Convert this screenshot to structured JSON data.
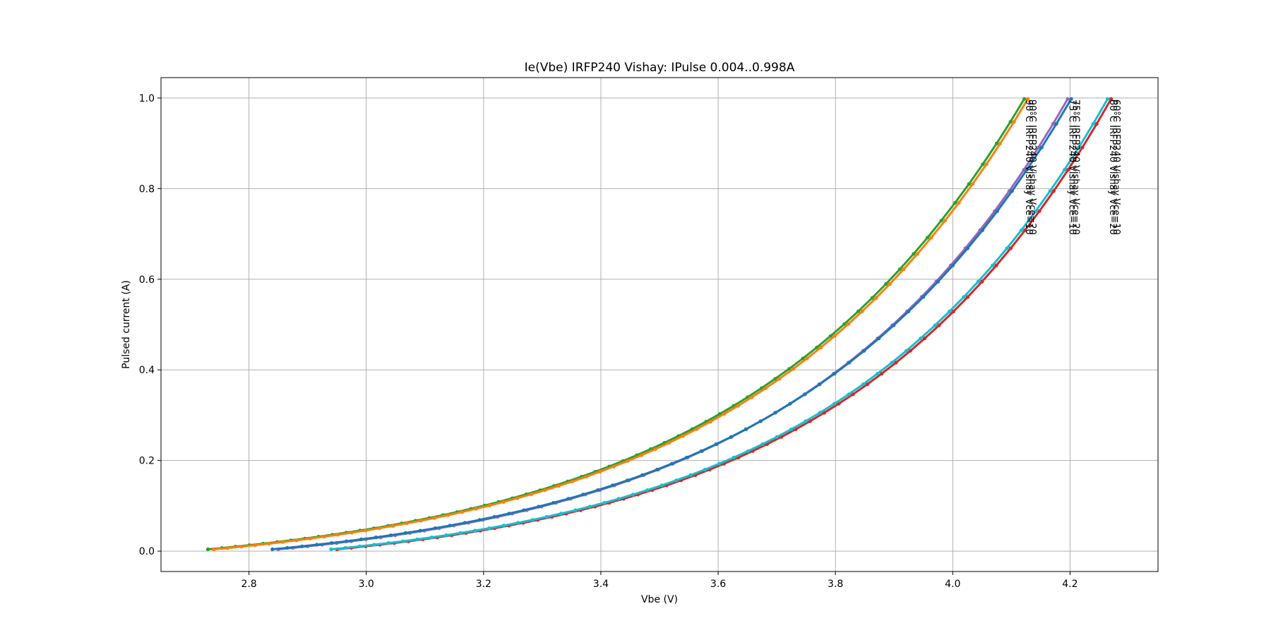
{
  "chart_data": {
    "type": "line",
    "title": "Ie(Vbe) IRFP240 Vishay: IPulse 0.004..0.998A",
    "xlabel": "Vbe (V)",
    "ylabel": "Pulsed current (A)",
    "xlim": [
      2.65,
      4.35
    ],
    "ylim": [
      -0.045,
      1.045
    ],
    "xticks": [
      2.8,
      3.0,
      3.2,
      3.4,
      3.6,
      3.8,
      4.0,
      4.2
    ],
    "xtick_labels": [
      "2.8",
      "3.0",
      "3.2",
      "3.4",
      "3.6",
      "3.8",
      "4.0",
      "4.2"
    ],
    "yticks": [
      0.0,
      0.2,
      0.4,
      0.6,
      0.8,
      1.0
    ],
    "ytick_labels": [
      "0.0",
      "0.2",
      "0.4",
      "0.6",
      "0.8",
      "1.0"
    ],
    "grid": true,
    "legend": "none",
    "i_range": [
      0.004,
      0.998
    ],
    "series": [
      {
        "label": "90°C IRFP240 Vishay Vce=10",
        "color": "#2ca02c",
        "vbe_start": 2.73,
        "vbe_end": 4.122,
        "markers": 60
      },
      {
        "label": "90°C IRFP240 Vishay Vce=20",
        "color": "#ff7f0e",
        "vbe_start": 2.74,
        "vbe_end": 4.128,
        "markers": 60
      },
      {
        "label": "75°C IRFP240 Vishay Vce=10",
        "color": "#9467bd",
        "vbe_start": 2.85,
        "vbe_end": 4.196,
        "markers": 55
      },
      {
        "label": "75°C IRFP240 Vishay Vce=20",
        "color": "#1f77b4",
        "vbe_start": 2.84,
        "vbe_end": 4.202,
        "markers": 55
      },
      {
        "label": "60°C IRFP240 Vishay Vce=10",
        "color": "#d62728",
        "vbe_start": 2.95,
        "vbe_end": 4.27,
        "markers": 55
      },
      {
        "label": "60°C IRFP240 Vishay Vce=20",
        "color": "#17becf",
        "vbe_start": 2.94,
        "vbe_end": 4.264,
        "markers": 55
      }
    ],
    "end_labels": [
      {
        "text": "90°C IRFP240 Vishay Vce=10",
        "x": 4.125
      },
      {
        "text": "90°C IRFP240 Vishay Vce=20",
        "x": 4.131
      },
      {
        "text": "75°C IRFP240 Vishay Vce=10",
        "x": 4.199
      },
      {
        "text": "75°C IRFP240 Vishay Vce=20",
        "x": 4.205
      },
      {
        "text": "60°C IRFP240 Vishay Vce=10",
        "x": 4.274
      },
      {
        "text": "60°C IRFP240 Vishay Vce=20",
        "x": 4.268
      }
    ]
  }
}
